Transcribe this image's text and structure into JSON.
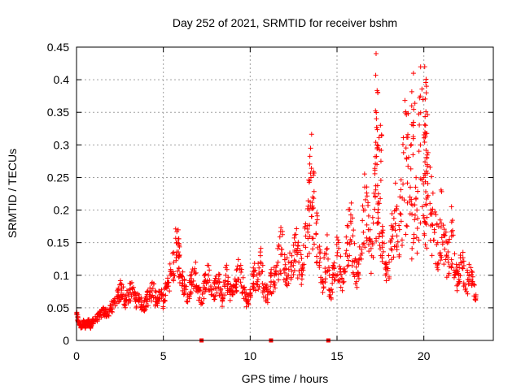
{
  "chart_data": {
    "type": "scatter",
    "title": "Day 252 of 2021, SRMTID for receiver bshm",
    "xlabel": "GPS time / hours",
    "ylabel": "SRMTID / TECUs",
    "xlim": [
      0,
      24
    ],
    "ylim": [
      0,
      0.45
    ],
    "xticks": [
      0,
      5,
      10,
      15,
      20
    ],
    "xtick_labels": [
      "0",
      "5",
      "10",
      "15",
      "20"
    ],
    "yticks": [
      0,
      0.05,
      0.1,
      0.15,
      0.2,
      0.25,
      0.3,
      0.35,
      0.4,
      0.45
    ],
    "ytick_labels": [
      "0",
      "0.05",
      "0.1",
      "0.15",
      "0.2",
      "0.25",
      "0.3",
      "0.35",
      "0.4",
      "0.45"
    ],
    "grid": true,
    "marker": "+",
    "color": "#ff0000",
    "series": [
      {
        "name": "SRMTID",
        "x": [
          0.0,
          0.1,
          0.2,
          0.3,
          0.4,
          0.5,
          0.6,
          0.7,
          0.8,
          0.9,
          1.0,
          1.2,
          1.4,
          1.6,
          1.8,
          2.0,
          2.2,
          2.4,
          2.6,
          2.8,
          3.0,
          3.2,
          3.4,
          3.6,
          3.8,
          4.0,
          4.2,
          4.4,
          4.6,
          4.8,
          5.0,
          5.2,
          5.4,
          5.6,
          5.8,
          5.9,
          6.0,
          6.2,
          6.4,
          6.6,
          6.8,
          7.0,
          7.2,
          7.4,
          7.6,
          7.8,
          8.0,
          8.2,
          8.4,
          8.6,
          8.8,
          9.0,
          9.2,
          9.4,
          9.6,
          9.8,
          10.0,
          10.2,
          10.4,
          10.6,
          10.8,
          11.0,
          11.2,
          11.4,
          11.6,
          11.8,
          12.0,
          12.2,
          12.4,
          12.6,
          12.8,
          13.0,
          13.2,
          13.4,
          13.5,
          13.6,
          13.8,
          14.0,
          14.2,
          14.4,
          14.6,
          14.8,
          15.0,
          15.2,
          15.4,
          15.6,
          15.8,
          16.0,
          16.2,
          16.4,
          16.6,
          16.8,
          17.0,
          17.2,
          17.3,
          17.4,
          17.6,
          17.8,
          18.0,
          18.2,
          18.4,
          18.6,
          18.8,
          19.0,
          19.2,
          19.4,
          19.6,
          19.8,
          20.0,
          20.1,
          20.2,
          20.4,
          20.6,
          20.8,
          21.0,
          21.2,
          21.4,
          21.6,
          21.8,
          22.0,
          22.2,
          22.4,
          22.6,
          22.8,
          23.0
        ],
        "y": [
          0.04,
          0.03,
          0.025,
          0.02,
          0.03,
          0.02,
          0.025,
          0.03,
          0.02,
          0.03,
          0.03,
          0.035,
          0.04,
          0.045,
          0.04,
          0.05,
          0.06,
          0.07,
          0.08,
          0.06,
          0.07,
          0.08,
          0.06,
          0.07,
          0.05,
          0.06,
          0.07,
          0.08,
          0.06,
          0.07,
          0.06,
          0.08,
          0.1,
          0.12,
          0.15,
          0.13,
          0.1,
          0.08,
          0.07,
          0.09,
          0.11,
          0.08,
          0.06,
          0.09,
          0.1,
          0.07,
          0.08,
          0.09,
          0.06,
          0.1,
          0.08,
          0.07,
          0.09,
          0.11,
          0.08,
          0.06,
          0.07,
          0.1,
          0.09,
          0.12,
          0.08,
          0.07,
          0.09,
          0.1,
          0.12,
          0.14,
          0.11,
          0.1,
          0.13,
          0.15,
          0.12,
          0.11,
          0.16,
          0.2,
          0.25,
          0.22,
          0.18,
          0.12,
          0.09,
          0.14,
          0.07,
          0.1,
          0.13,
          0.11,
          0.09,
          0.15,
          0.18,
          0.12,
          0.1,
          0.14,
          0.2,
          0.17,
          0.13,
          0.22,
          0.27,
          0.18,
          0.15,
          0.1,
          0.12,
          0.16,
          0.2,
          0.17,
          0.24,
          0.28,
          0.22,
          0.15,
          0.2,
          0.3,
          0.25,
          0.18,
          0.22,
          0.2,
          0.17,
          0.15,
          0.18,
          0.14,
          0.12,
          0.16,
          0.1,
          0.09,
          0.12,
          0.08,
          0.1,
          0.09,
          0.07
        ]
      }
    ],
    "peaks": [
      {
        "x": 17.25,
        "y": 0.44
      },
      {
        "x": 17.35,
        "y": 0.38
      },
      {
        "x": 17.5,
        "y": 0.33
      },
      {
        "x": 19.4,
        "y": 0.41
      },
      {
        "x": 20.05,
        "y": 0.42
      },
      {
        "x": 20.15,
        "y": 0.39
      },
      {
        "x": 19.3,
        "y": 0.36
      },
      {
        "x": 20.1,
        "y": 0.33
      }
    ],
    "baseline_markers": [
      {
        "x": 7.2,
        "y": 0
      },
      {
        "x": 11.2,
        "y": 0
      },
      {
        "x": 14.5,
        "y": 0
      }
    ]
  }
}
